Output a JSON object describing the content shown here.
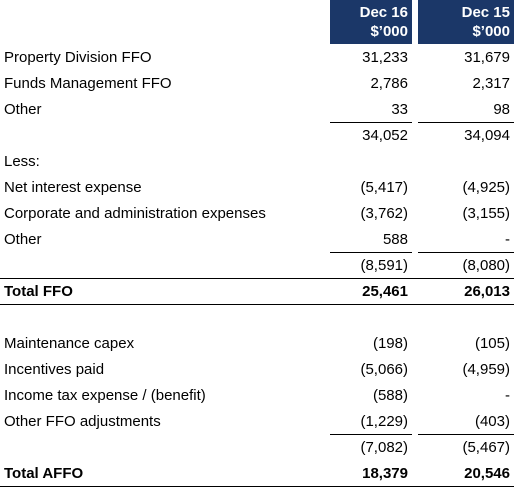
{
  "header": {
    "columns": [
      [
        "Dec 16",
        "$’000"
      ],
      [
        "Dec 15",
        "$’000"
      ]
    ]
  },
  "table": {
    "rows": [
      [
        "Property Division FFO",
        "31,233",
        "31,679"
      ],
      [
        "Funds Management FFO",
        "2,786",
        "2,317"
      ],
      [
        "Other",
        "33",
        "98"
      ],
      [
        null,
        "34,052",
        "34,094"
      ],
      [
        "Less:",
        null,
        null
      ],
      [
        "Net interest expense",
        "(5,417)",
        "(4,925)"
      ],
      [
        "Corporate and administration expenses",
        "(3,762)",
        "(3,155)"
      ],
      [
        "Other",
        "588",
        "-"
      ],
      [
        null,
        "(8,591)",
        "(8,080)"
      ],
      [
        "Total FFO",
        "25,461",
        "26,013"
      ],
      [
        null,
        null,
        null
      ],
      [
        "Maintenance capex",
        "(198)",
        "(105)"
      ],
      [
        "Incentives paid",
        "(5,066)",
        "(4,959)"
      ],
      [
        "Income tax expense / (benefit)",
        "(588)",
        "-"
      ],
      [
        "Other FFO adjustments",
        "(1,229)",
        "(403)"
      ],
      [
        null,
        "(7,082)",
        "(5,467)"
      ],
      [
        "Total AFFO",
        "18,379",
        "20,546"
      ]
    ]
  }
}
